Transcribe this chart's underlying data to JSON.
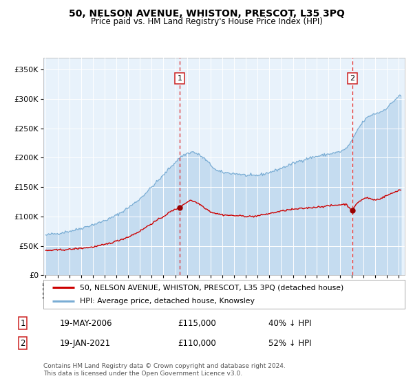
{
  "title": "50, NELSON AVENUE, WHISTON, PRESCOT, L35 3PQ",
  "subtitle": "Price paid vs. HM Land Registry's House Price Index (HPI)",
  "legend_line1": "50, NELSON AVENUE, WHISTON, PRESCOT, L35 3PQ (detached house)",
  "legend_line2": "HPI: Average price, detached house, Knowsley",
  "marker1_date_label": "19-MAY-2006",
  "marker1_price": "£115,000",
  "marker1_hpi": "40% ↓ HPI",
  "marker2_date_label": "19-JAN-2021",
  "marker2_price": "£110,000",
  "marker2_hpi": "52% ↓ HPI",
  "footnote1": "Contains HM Land Registry data © Crown copyright and database right 2024.",
  "footnote2": "This data is licensed under the Open Government Licence v3.0.",
  "hpi_color": "#7aadd4",
  "hpi_fill_color": "#c5dcf0",
  "property_color": "#cc0000",
  "marker_color": "#990000",
  "plot_bg": "#e8f2fb",
  "grid_color": "#ffffff",
  "ylim": [
    0,
    370000
  ],
  "yticks": [
    0,
    50000,
    100000,
    150000,
    200000,
    250000,
    300000,
    350000
  ],
  "ytick_labels": [
    "£0",
    "£50K",
    "£100K",
    "£150K",
    "£200K",
    "£250K",
    "£300K",
    "£350K"
  ],
  "marker1_x": 2006.38,
  "marker1_y": 115000,
  "marker2_x": 2021.05,
  "marker2_y": 110000,
  "xmin": 1994.8,
  "xmax": 2025.5
}
